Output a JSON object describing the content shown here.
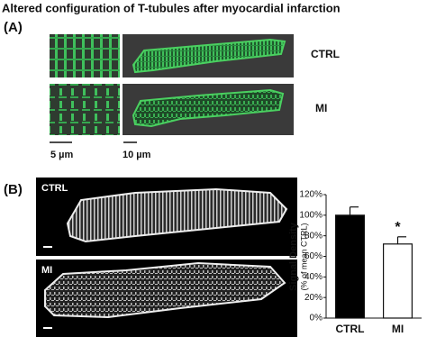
{
  "title": "Altered configuration of T-tubules after myocardial infarction",
  "panel_a": {
    "label": "(A)",
    "rows": [
      "CTRL",
      "MI"
    ],
    "scale_bars": [
      "5 µm",
      "10 µm"
    ]
  },
  "panel_b": {
    "label": "(B)",
    "image_labels": [
      "CTRL",
      "MI"
    ]
  },
  "chart_data": {
    "type": "bar",
    "y_label": "Signal Density",
    "y_sublabel": "(% of mean CTRL)",
    "categories": [
      "CTRL",
      "MI"
    ],
    "values": [
      100,
      72
    ],
    "errors": [
      8,
      7
    ],
    "colors": [
      "#000000",
      "#ffffff"
    ],
    "annotation": "*",
    "ylim": [
      0,
      120
    ],
    "yticks": [
      {
        "value": 0,
        "label": "0%"
      },
      {
        "value": 20,
        "label": "20%"
      },
      {
        "value": 40,
        "label": "40%"
      },
      {
        "value": 60,
        "label": "60%"
      },
      {
        "value": 80,
        "label": "80%"
      },
      {
        "value": 100,
        "label": "100%"
      },
      {
        "value": 120,
        "label": "120%"
      }
    ]
  }
}
